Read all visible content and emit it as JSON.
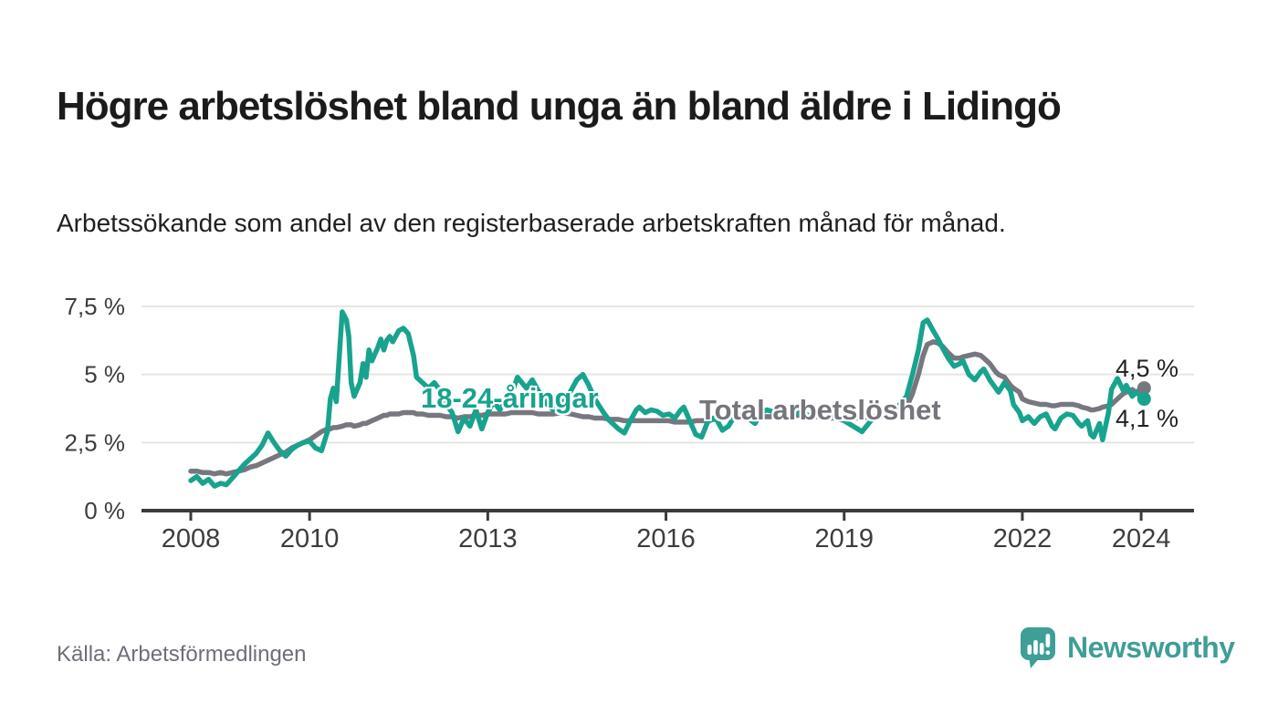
{
  "title": "Högre arbetslöshet bland unga än bland äldre i Lidingö",
  "subtitle": "Arbetssökande som andel av den registerbaserade arbetskraften månad för månad.",
  "source": "Källa: Arbetsförmedlingen",
  "branding": {
    "logo_text": "Newsworthy",
    "logo_icon": "bar-chart-speech-bubble-icon",
    "brand_color": "#3f9e96"
  },
  "colors": {
    "youth_line": "#18a38e",
    "total_line": "#77777f",
    "grid_line": "#e4e4e4",
    "axis_line": "#3b3b3b",
    "tick_text": "#3d3d3d",
    "background": "#ffffff"
  },
  "chart_data": {
    "type": "line",
    "title": "Högre arbetslöshet bland unga än bland äldre i Lidingö",
    "xlabel": "",
    "ylabel": "",
    "grid": "horizontal",
    "legend_position": "inline-labels",
    "ylim": [
      0,
      7.5
    ],
    "xlim": [
      2007.17,
      2024.89
    ],
    "y_ticks": [
      {
        "value": 0,
        "label": "0 %"
      },
      {
        "value": 2.5,
        "label": "2,5 %"
      },
      {
        "value": 5,
        "label": "5 %"
      },
      {
        "value": 7.5,
        "label": "7,5 %"
      }
    ],
    "x_ticks": [
      {
        "value": 2008,
        "label": "2008"
      },
      {
        "value": 2010,
        "label": "2010"
      },
      {
        "value": 2013,
        "label": "2013"
      },
      {
        "value": 2016,
        "label": "2016"
      },
      {
        "value": 2019,
        "label": "2019"
      },
      {
        "value": 2022,
        "label": "2022"
      },
      {
        "value": 2024,
        "label": "2024"
      }
    ],
    "x": [
      2008.0,
      2008.1,
      2008.2,
      2008.3,
      2008.4,
      2008.5,
      2008.6,
      2008.7,
      2008.8,
      2008.9,
      2009.0,
      2009.1,
      2009.2,
      2009.3,
      2009.4,
      2009.5,
      2009.6,
      2009.7,
      2009.8,
      2009.9,
      2010.0,
      2010.1,
      2010.2,
      2010.3,
      2010.35,
      2010.4,
      2010.45,
      2010.55,
      2010.62,
      2010.66,
      2010.7,
      2010.75,
      2010.85,
      2010.9,
      2010.95,
      2011.0,
      2011.05,
      2011.15,
      2011.2,
      2011.25,
      2011.3,
      2011.35,
      2011.4,
      2011.5,
      2011.58,
      2011.66,
      2011.75,
      2011.8,
      2011.9,
      2012.0,
      2012.1,
      2012.2,
      2012.3,
      2012.4,
      2012.5,
      2012.6,
      2012.7,
      2012.8,
      2012.9,
      2013.0,
      2013.1,
      2013.2,
      2013.3,
      2013.4,
      2013.5,
      2013.65,
      2013.75,
      2013.85,
      2014.0,
      2014.1,
      2014.25,
      2014.4,
      2014.5,
      2014.6,
      2014.7,
      2014.8,
      2014.95,
      2015.05,
      2015.2,
      2015.3,
      2015.4,
      2015.5,
      2015.55,
      2015.65,
      2015.75,
      2015.85,
      2015.95,
      2016.05,
      2016.15,
      2016.25,
      2016.3,
      2016.4,
      2016.5,
      2016.6,
      2016.7,
      2016.8,
      2016.85,
      2016.95,
      2017.05,
      2017.15,
      2017.25,
      2017.35,
      2017.5,
      2017.6,
      2017.7,
      2017.85,
      2017.95,
      2018.1,
      2018.25,
      2018.4,
      2018.55,
      2018.7,
      2018.85,
      2019.0,
      2019.15,
      2019.3,
      2019.45,
      2019.6,
      2019.75,
      2019.9,
      2020.05,
      2020.15,
      2020.25,
      2020.33,
      2020.4,
      2020.5,
      2020.58,
      2020.65,
      2020.75,
      2020.85,
      2020.95,
      2021.0,
      2021.1,
      2021.2,
      2021.3,
      2021.35,
      2021.45,
      2021.55,
      2021.6,
      2021.7,
      2021.8,
      2021.85,
      2021.95,
      2022.0,
      2022.1,
      2022.2,
      2022.3,
      2022.4,
      2022.5,
      2022.55,
      2022.65,
      2022.75,
      2022.85,
      2022.95,
      2023.0,
      2023.1,
      2023.15,
      2023.2,
      2023.3,
      2023.35,
      2023.45,
      2023.5,
      2023.6,
      2023.7,
      2023.75,
      2023.85,
      2023.95,
      2024.0,
      2024.05
    ],
    "series": [
      {
        "name": "18-24-åringar",
        "color": "#18a38e",
        "end_label": "4,1 %",
        "end_value": 4.1,
        "values": [
          1.1,
          1.25,
          1.0,
          1.15,
          0.9,
          1.0,
          0.95,
          1.2,
          1.45,
          1.7,
          1.9,
          2.1,
          2.4,
          2.85,
          2.5,
          2.2,
          2.0,
          2.25,
          2.4,
          2.5,
          2.55,
          2.3,
          2.2,
          2.9,
          4.1,
          4.5,
          4.0,
          7.3,
          7.0,
          6.4,
          4.7,
          4.2,
          4.7,
          5.4,
          4.9,
          5.9,
          5.5,
          6.0,
          6.3,
          5.9,
          6.25,
          6.4,
          6.2,
          6.6,
          6.7,
          6.5,
          5.7,
          4.9,
          4.7,
          4.5,
          4.7,
          4.4,
          3.9,
          3.6,
          2.9,
          3.4,
          3.1,
          3.7,
          3.0,
          3.6,
          4.0,
          3.7,
          4.0,
          4.3,
          4.9,
          4.5,
          4.8,
          4.4,
          3.9,
          3.7,
          3.9,
          4.4,
          4.8,
          5.0,
          4.6,
          4.1,
          3.6,
          3.3,
          3.0,
          2.85,
          3.3,
          3.7,
          3.8,
          3.6,
          3.7,
          3.65,
          3.5,
          3.55,
          3.4,
          3.7,
          3.8,
          3.3,
          2.8,
          2.7,
          3.25,
          3.4,
          3.35,
          2.95,
          3.1,
          3.45,
          3.5,
          3.45,
          3.2,
          3.6,
          3.7,
          3.6,
          3.4,
          3.45,
          3.6,
          3.5,
          3.55,
          3.5,
          3.4,
          3.3,
          3.1,
          2.9,
          3.3,
          3.6,
          3.7,
          3.8,
          4.2,
          5.0,
          5.9,
          6.9,
          7.0,
          6.6,
          6.3,
          6.0,
          5.6,
          5.3,
          5.4,
          5.5,
          5.0,
          4.8,
          5.1,
          5.2,
          4.8,
          4.5,
          4.35,
          4.7,
          4.4,
          3.9,
          3.6,
          3.3,
          3.45,
          3.2,
          3.45,
          3.55,
          3.1,
          3.0,
          3.4,
          3.55,
          3.5,
          3.2,
          3.1,
          3.3,
          2.8,
          2.7,
          3.2,
          2.6,
          3.6,
          4.45,
          4.85,
          4.4,
          4.6,
          4.2,
          4.4,
          4.0,
          4.1
        ]
      },
      {
        "name": "Total arbetslöshet",
        "color": "#77777f",
        "end_label": "4,5 %",
        "end_value": 4.5,
        "values": [
          1.45,
          1.45,
          1.4,
          1.4,
          1.35,
          1.4,
          1.35,
          1.4,
          1.45,
          1.5,
          1.6,
          1.65,
          1.75,
          1.85,
          1.95,
          2.05,
          2.15,
          2.3,
          2.4,
          2.5,
          2.6,
          2.75,
          2.9,
          3.0,
          3.0,
          3.05,
          3.05,
          3.1,
          3.15,
          3.15,
          3.15,
          3.1,
          3.15,
          3.2,
          3.2,
          3.25,
          3.3,
          3.4,
          3.45,
          3.5,
          3.5,
          3.55,
          3.55,
          3.55,
          3.6,
          3.6,
          3.6,
          3.55,
          3.55,
          3.5,
          3.5,
          3.5,
          3.45,
          3.45,
          3.4,
          3.45,
          3.45,
          3.5,
          3.5,
          3.55,
          3.55,
          3.55,
          3.55,
          3.6,
          3.6,
          3.6,
          3.6,
          3.55,
          3.55,
          3.55,
          3.6,
          3.55,
          3.5,
          3.45,
          3.45,
          3.4,
          3.4,
          3.35,
          3.35,
          3.3,
          3.3,
          3.3,
          3.3,
          3.3,
          3.3,
          3.3,
          3.3,
          3.3,
          3.25,
          3.25,
          3.25,
          3.25,
          3.3,
          3.3,
          3.3,
          3.35,
          3.35,
          3.4,
          3.4,
          3.4,
          3.4,
          3.4,
          3.4,
          3.45,
          3.45,
          3.45,
          3.45,
          3.5,
          3.5,
          3.45,
          3.45,
          3.4,
          3.4,
          3.4,
          3.4,
          3.4,
          3.45,
          3.45,
          3.5,
          3.5,
          3.8,
          4.3,
          5.0,
          5.7,
          6.1,
          6.2,
          6.15,
          6.05,
          5.8,
          5.6,
          5.6,
          5.65,
          5.7,
          5.75,
          5.7,
          5.6,
          5.4,
          5.1,
          5.0,
          4.9,
          4.6,
          4.5,
          4.35,
          4.1,
          4.0,
          3.95,
          3.9,
          3.9,
          3.85,
          3.85,
          3.9,
          3.9,
          3.9,
          3.85,
          3.8,
          3.75,
          3.7,
          3.7,
          3.75,
          3.8,
          3.85,
          3.9,
          4.1,
          4.3,
          4.35,
          4.45,
          4.3,
          4.4,
          4.5
        ]
      }
    ]
  }
}
